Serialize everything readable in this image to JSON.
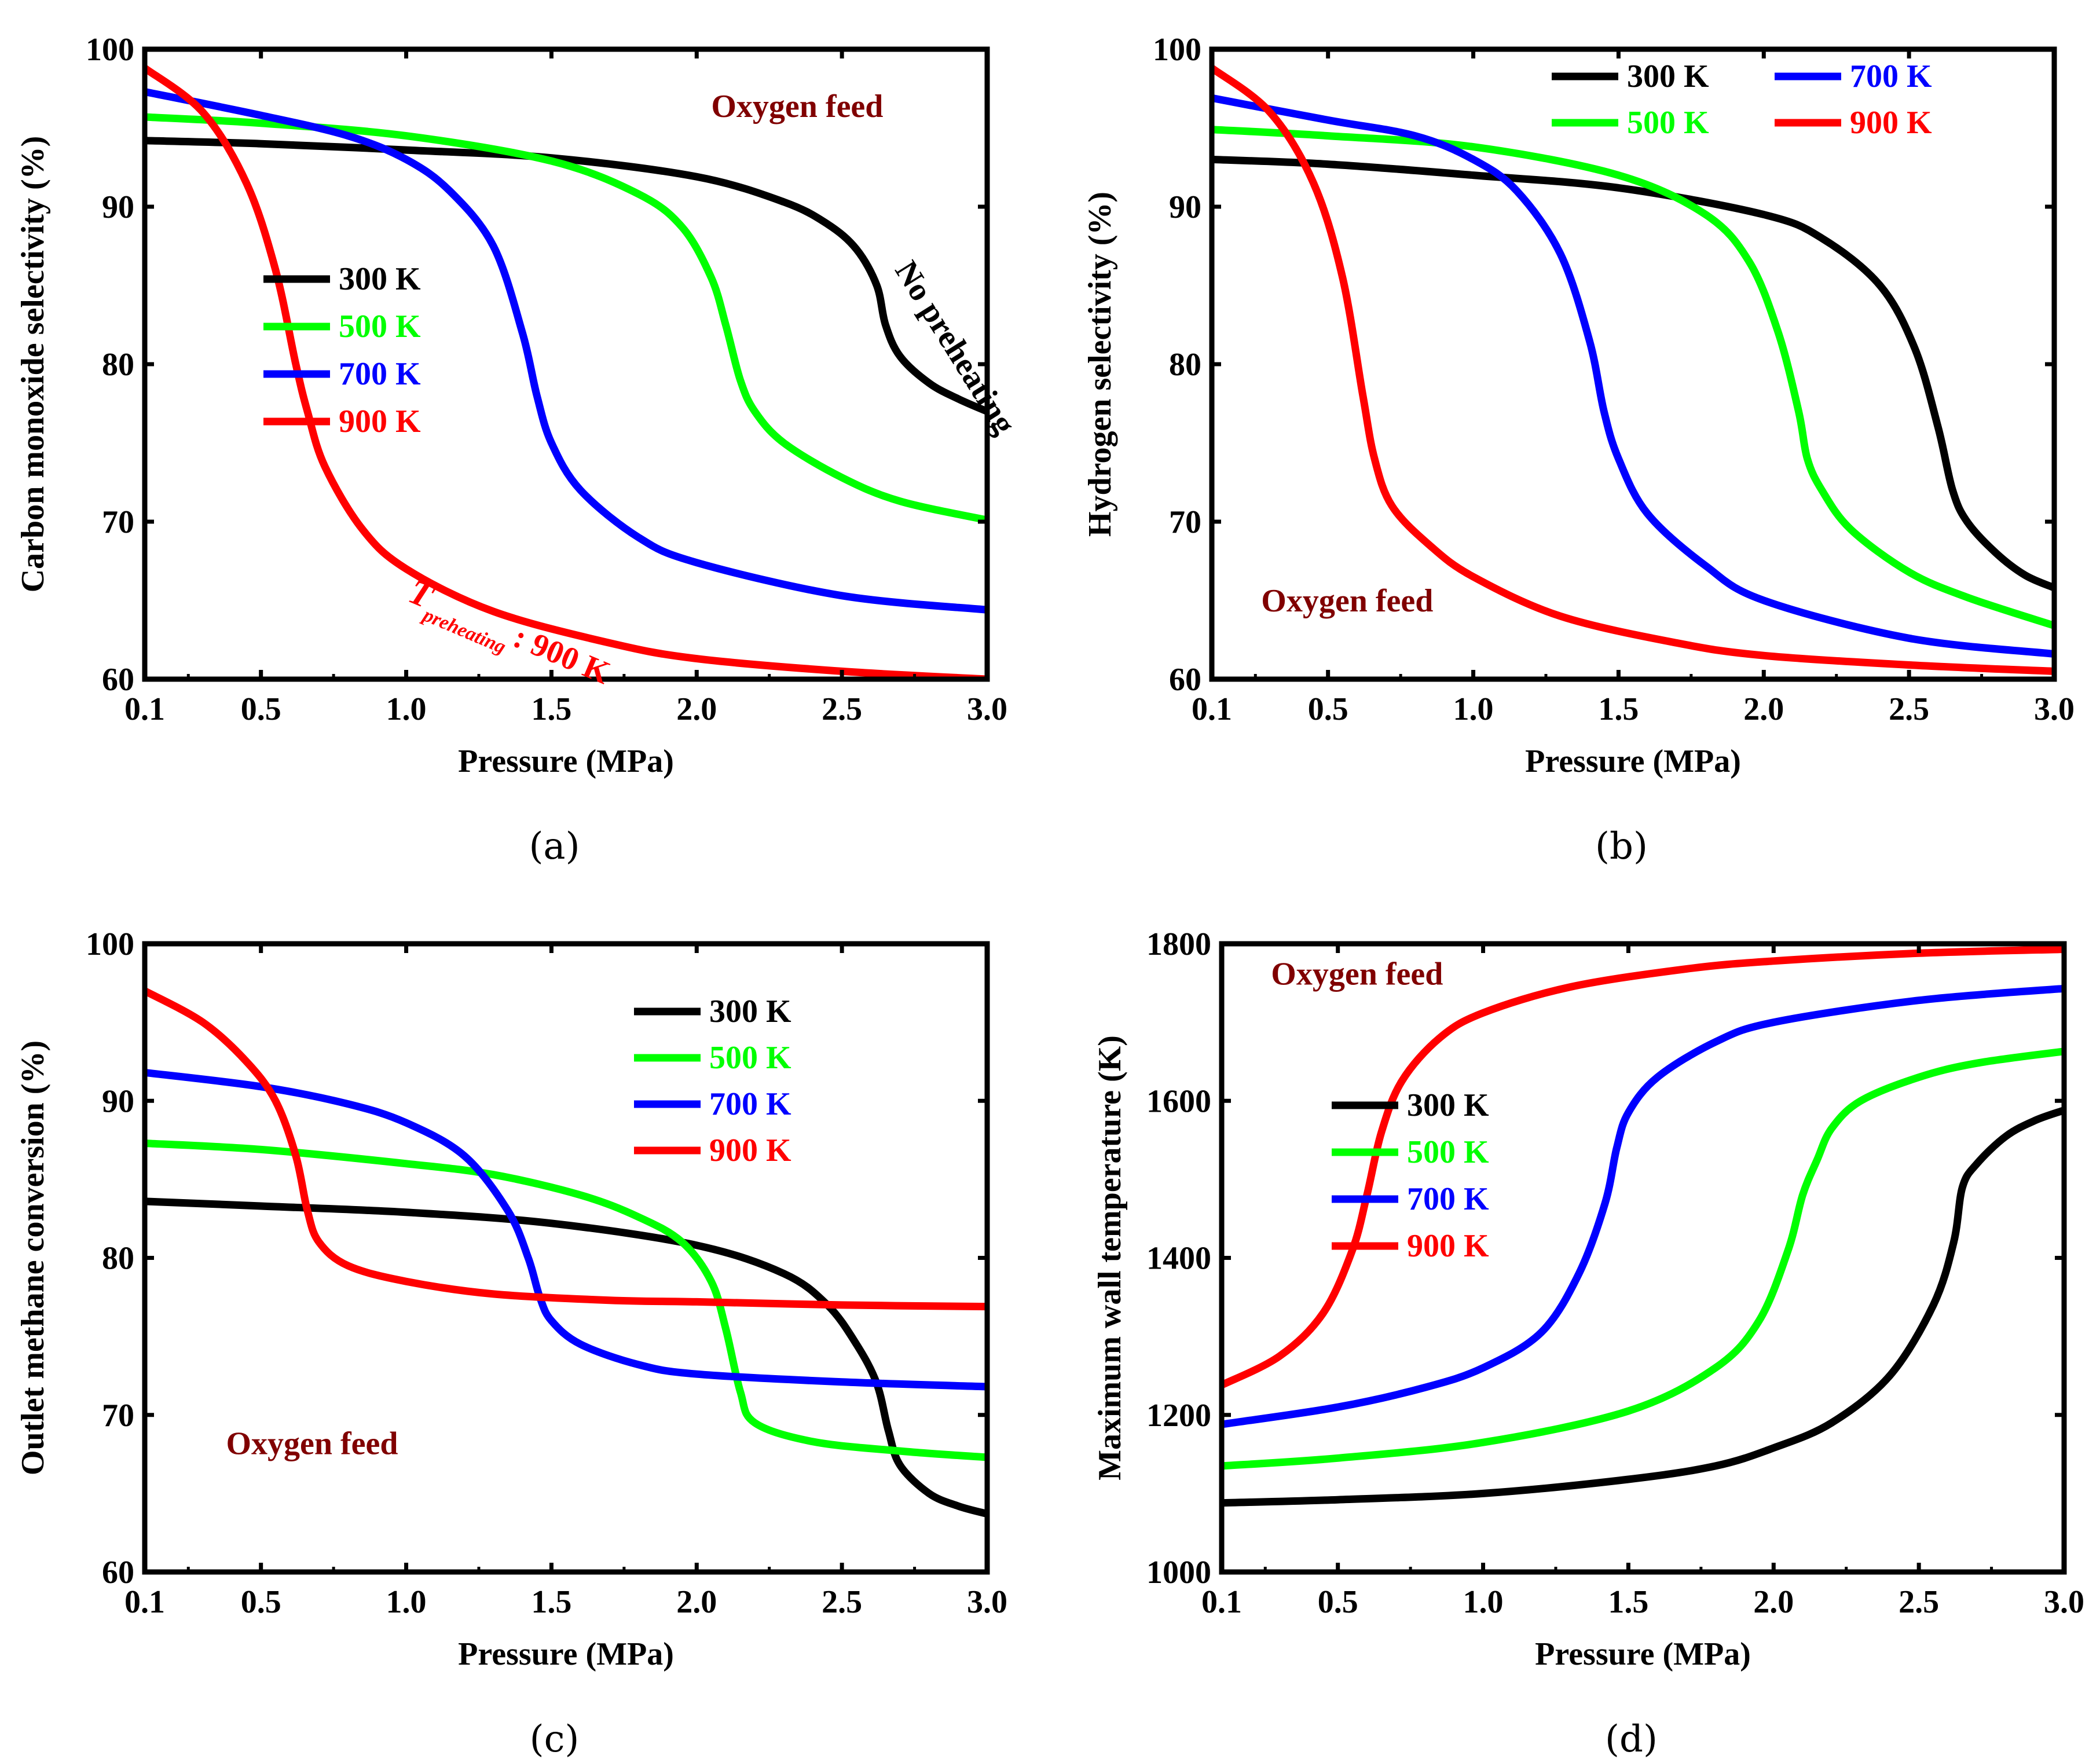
{
  "figure": {
    "panels": [
      {
        "id": "a",
        "panel_label": "(a)",
        "chart_data": {
          "type": "line",
          "title": "",
          "xlabel": "Pressure (MPa)",
          "ylabel": "Carbon monoxide selectivity (%)",
          "xlim": [
            0.1,
            3.0
          ],
          "ylim": [
            60,
            100
          ],
          "xticks": [
            0.1,
            0.5,
            1.0,
            1.5,
            2.0,
            2.5,
            3.0
          ],
          "xtick_labels": [
            "0.1",
            "0.5",
            "1.0",
            "1.5",
            "2.0",
            "2.5",
            "3.0"
          ],
          "yticks": [
            60,
            70,
            80,
            90,
            100
          ],
          "ytick_labels": [
            "60",
            "70",
            "80",
            "90",
            "100"
          ],
          "legend": "center-left",
          "series": [
            {
              "name": "300 K",
              "color": "#000000",
              "x": [
                0.1,
                0.5,
                1.0,
                1.5,
                2.0,
                2.3,
                2.45,
                2.55,
                2.62,
                2.65,
                2.7,
                2.8,
                2.9,
                3.0
              ],
              "y": [
                94.2,
                94.0,
                93.6,
                93.1,
                91.9,
                90.3,
                88.9,
                87.3,
                85.0,
                82.5,
                80.5,
                78.8,
                77.8,
                77.0
              ]
            },
            {
              "name": "500 K",
              "color": "#00ff00",
              "x": [
                0.1,
                0.5,
                1.0,
                1.5,
                1.8,
                1.95,
                2.05,
                2.1,
                2.15,
                2.2,
                2.3,
                2.5,
                2.7,
                3.0
              ],
              "y": [
                95.7,
                95.3,
                94.5,
                92.9,
                90.8,
                88.7,
                85.5,
                82.5,
                79.0,
                77.0,
                75.0,
                72.8,
                71.3,
                70.1
              ]
            },
            {
              "name": "700 K",
              "color": "#0000ff",
              "x": [
                0.1,
                0.5,
                0.8,
                1.0,
                1.15,
                1.3,
                1.4,
                1.45,
                1.5,
                1.6,
                1.8,
                2.0,
                2.5,
                3.0
              ],
              "y": [
                97.3,
                95.8,
                94.5,
                93.0,
                91.0,
                87.5,
                82.0,
                78.0,
                75.0,
                72.0,
                69.0,
                67.4,
                65.3,
                64.4
              ]
            },
            {
              "name": "900 K",
              "color": "#ff0000",
              "x": [
                0.1,
                0.3,
                0.45,
                0.55,
                0.62,
                0.66,
                0.72,
                0.85,
                1.0,
                1.3,
                1.7,
                2.0,
                2.5,
                3.0
              ],
              "y": [
                98.8,
                96.0,
                91.5,
                86.0,
                80.0,
                77.0,
                73.5,
                69.5,
                67.0,
                64.3,
                62.3,
                61.3,
                60.5,
                60.0
              ]
            }
          ],
          "annotations": [
            {
              "text": "Oxygen feed",
              "x": 2.05,
              "y": 95.7,
              "color": "#800000",
              "rotate": 0
            },
            {
              "text": "No preheating",
              "x": 2.68,
              "y": 86.0,
              "color": "#000000",
              "rotate": 58
            },
            {
              "main": "T",
              "sub": "preheating",
              "tail": ": 900 K",
              "x": 1.0,
              "y": 65.0,
              "color": "#ff0000",
              "rotate": 23
            }
          ]
        }
      },
      {
        "id": "b",
        "panel_label": "(b)",
        "chart_data": {
          "type": "line",
          "title": "",
          "xlabel": "Pressure (MPa)",
          "ylabel": "Hydrogen selectivity (%)",
          "xlim": [
            0.1,
            3.0
          ],
          "ylim": [
            60,
            100
          ],
          "xticks": [
            0.1,
            0.5,
            1.0,
            1.5,
            2.0,
            2.5,
            3.0
          ],
          "xtick_labels": [
            "0.1",
            "0.5",
            "1.0",
            "1.5",
            "2.0",
            "2.5",
            "3.0"
          ],
          "yticks": [
            60,
            70,
            80,
            90,
            100
          ],
          "ytick_labels": [
            "60",
            "70",
            "80",
            "90",
            "100"
          ],
          "legend": "top-right",
          "series": [
            {
              "name": "300 K",
              "color": "#000000",
              "x": [
                0.1,
                0.5,
                1.0,
                1.5,
                2.0,
                2.2,
                2.4,
                2.52,
                2.6,
                2.65,
                2.7,
                2.8,
                2.9,
                3.0
              ],
              "y": [
                93.0,
                92.7,
                92.0,
                91.2,
                89.5,
                88.0,
                85.0,
                81.0,
                76.0,
                72.0,
                70.0,
                68.0,
                66.6,
                65.8
              ]
            },
            {
              "name": "500 K",
              "color": "#00ff00",
              "x": [
                0.1,
                0.5,
                1.0,
                1.5,
                1.8,
                1.95,
                2.05,
                2.12,
                2.15,
                2.2,
                2.3,
                2.5,
                2.7,
                3.0
              ],
              "y": [
                94.9,
                94.5,
                93.8,
                92.0,
                89.5,
                86.5,
                82.0,
                77.0,
                74.0,
                72.0,
                69.5,
                66.8,
                65.2,
                63.4
              ]
            },
            {
              "name": "700 K",
              "color": "#0000ff",
              "x": [
                0.1,
                0.5,
                0.8,
                1.0,
                1.15,
                1.3,
                1.4,
                1.45,
                1.5,
                1.6,
                1.8,
                2.0,
                2.5,
                3.0
              ],
              "y": [
                96.9,
                95.5,
                94.5,
                93.0,
                91.0,
                87.0,
                81.5,
                77.0,
                74.0,
                70.5,
                67.2,
                65.0,
                62.6,
                61.6
              ]
            },
            {
              "name": "900 K",
              "color": "#ff0000",
              "x": [
                0.1,
                0.3,
                0.45,
                0.55,
                0.62,
                0.66,
                0.72,
                0.85,
                1.0,
                1.3,
                1.7,
                2.0,
                2.5,
                3.0
              ],
              "y": [
                98.8,
                96.0,
                91.5,
                85.5,
                78.0,
                74.0,
                71.0,
                68.5,
                66.5,
                64.0,
                62.3,
                61.5,
                60.9,
                60.5
              ]
            }
          ],
          "annotations": [
            {
              "text": "Oxygen feed",
              "x": 0.27,
              "y": 64.3,
              "color": "#800000",
              "rotate": 0
            }
          ]
        }
      },
      {
        "id": "c",
        "panel_label": "(c)",
        "chart_data": {
          "type": "line",
          "title": "",
          "xlabel": "Pressure (MPa)",
          "ylabel": "Outlet methane conversion (%)",
          "xlim": [
            0.1,
            3.0
          ],
          "ylim": [
            60,
            100
          ],
          "xticks": [
            0.1,
            0.5,
            1.0,
            1.5,
            2.0,
            2.5,
            3.0
          ],
          "xtick_labels": [
            "0.1",
            "0.5",
            "1.0",
            "1.5",
            "2.0",
            "2.5",
            "3.0"
          ],
          "yticks": [
            60,
            70,
            80,
            90,
            100
          ],
          "ytick_labels": [
            "60",
            "70",
            "80",
            "90",
            "100"
          ],
          "legend": "top-right",
          "series": [
            {
              "name": "300 K",
              "color": "#000000",
              "x": [
                0.1,
                0.5,
                1.0,
                1.5,
                2.0,
                2.3,
                2.45,
                2.55,
                2.62,
                2.66,
                2.7,
                2.8,
                2.9,
                3.0
              ],
              "y": [
                83.6,
                83.3,
                82.9,
                82.2,
                80.8,
                79.0,
                77.0,
                74.5,
                72.0,
                69.0,
                66.8,
                65.0,
                64.2,
                63.7
              ]
            },
            {
              "name": "500 K",
              "color": "#00ff00",
              "x": [
                0.1,
                0.5,
                1.0,
                1.3,
                1.6,
                1.8,
                1.95,
                2.05,
                2.1,
                2.15,
                2.2,
                2.4,
                2.7,
                3.0
              ],
              "y": [
                87.3,
                86.9,
                86.0,
                85.3,
                84.0,
                82.6,
                81.0,
                78.5,
                75.5,
                71.5,
                69.5,
                68.3,
                67.7,
                67.3
              ]
            },
            {
              "name": "700 K",
              "color": "#0000ff",
              "x": [
                0.1,
                0.5,
                0.8,
                1.0,
                1.2,
                1.35,
                1.42,
                1.46,
                1.5,
                1.6,
                1.8,
                2.0,
                2.5,
                3.0
              ],
              "y": [
                91.8,
                90.9,
                89.8,
                88.6,
                86.5,
                83.0,
                80.0,
                77.5,
                76.0,
                74.5,
                73.2,
                72.6,
                72.1,
                71.8
              ]
            },
            {
              "name": "900 K",
              "color": "#ff0000",
              "x": [
                0.1,
                0.3,
                0.45,
                0.55,
                0.62,
                0.66,
                0.7,
                0.8,
                1.0,
                1.3,
                1.7,
                2.0,
                2.5,
                3.0
              ],
              "y": [
                97.0,
                95.0,
                92.5,
                90.0,
                86.5,
                83.0,
                81.0,
                79.5,
                78.5,
                77.7,
                77.3,
                77.2,
                77.0,
                76.9
              ]
            }
          ],
          "annotations": [
            {
              "text": "Oxygen feed",
              "x": 0.38,
              "y": 67.5,
              "color": "#800000",
              "rotate": 0
            }
          ]
        }
      },
      {
        "id": "d",
        "panel_label": "(d)",
        "chart_data": {
          "type": "line",
          "title": "",
          "xlabel": "Pressure (MPa)",
          "ylabel": "Maximum wall temperature (K)",
          "xlim": [
            0.1,
            3.0
          ],
          "ylim": [
            1000,
            1800
          ],
          "xticks": [
            0.1,
            0.5,
            1.0,
            1.5,
            2.0,
            2.5,
            3.0
          ],
          "xtick_labels": [
            "0.1",
            "0.5",
            "1.0",
            "1.5",
            "2.0",
            "2.5",
            "3.0"
          ],
          "yticks": [
            1000,
            1200,
            1400,
            1600,
            1800
          ],
          "ytick_labels": [
            "1000",
            "1200",
            "1400",
            "1600",
            "1800"
          ],
          "legend": "center-left",
          "series": [
            {
              "name": "300 K",
              "color": "#000000",
              "x": [
                0.1,
                0.5,
                1.0,
                1.5,
                1.8,
                2.0,
                2.2,
                2.4,
                2.55,
                2.62,
                2.65,
                2.7,
                2.8,
                2.9,
                3.0
              ],
              "y": [
                1088,
                1092,
                1100,
                1118,
                1135,
                1158,
                1190,
                1250,
                1340,
                1420,
                1490,
                1520,
                1555,
                1575,
                1588
              ]
            },
            {
              "name": "500 K",
              "color": "#00ff00",
              "x": [
                0.1,
                0.5,
                1.0,
                1.5,
                1.8,
                1.95,
                2.05,
                2.1,
                2.15,
                2.2,
                2.3,
                2.5,
                2.7,
                3.0
              ],
              "y": [
                1135,
                1145,
                1165,
                1205,
                1260,
                1320,
                1410,
                1480,
                1525,
                1565,
                1600,
                1630,
                1648,
                1663
              ]
            },
            {
              "name": "700 K",
              "color": "#0000ff",
              "x": [
                0.1,
                0.5,
                0.8,
                1.0,
                1.2,
                1.33,
                1.42,
                1.46,
                1.5,
                1.6,
                1.8,
                2.0,
                2.5,
                3.0
              ],
              "y": [
                1188,
                1210,
                1235,
                1260,
                1305,
                1380,
                1470,
                1540,
                1585,
                1630,
                1675,
                1700,
                1728,
                1743
              ]
            },
            {
              "name": "900 K",
              "color": "#ff0000",
              "x": [
                0.1,
                0.3,
                0.45,
                0.55,
                0.6,
                0.65,
                0.72,
                0.85,
                1.0,
                1.3,
                1.7,
                2.0,
                2.5,
                3.0
              ],
              "y": [
                1238,
                1275,
                1330,
                1410,
                1480,
                1560,
                1625,
                1680,
                1712,
                1745,
                1768,
                1778,
                1788,
                1793
              ]
            }
          ],
          "annotations": [
            {
              "text": "Oxygen feed",
              "x": 0.27,
              "y": 1748,
              "color": "#800000",
              "rotate": 0
            }
          ]
        }
      }
    ]
  }
}
